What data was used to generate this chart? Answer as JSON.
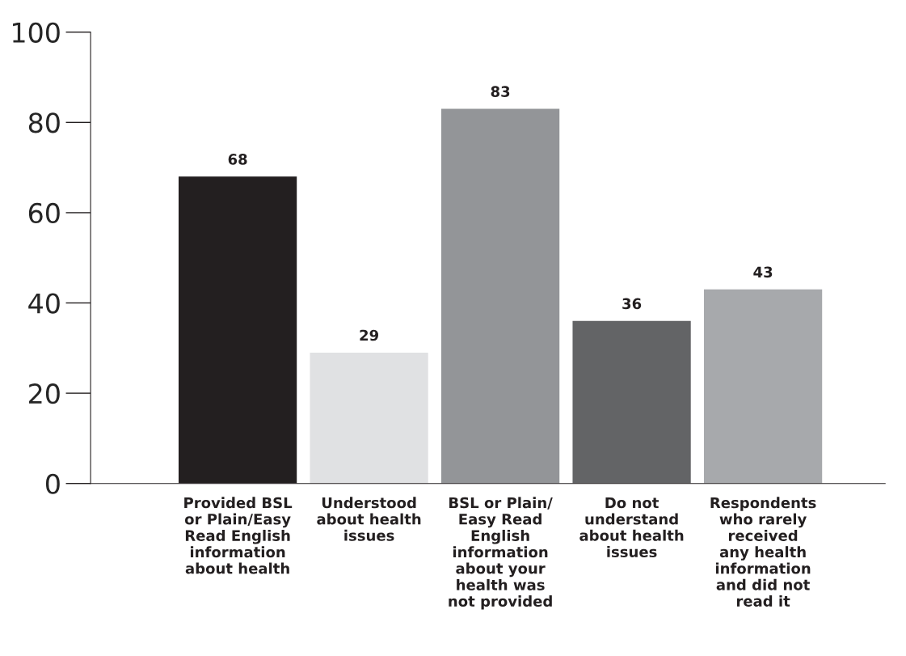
{
  "chart_data": {
    "type": "bar",
    "categories": [
      "Provided BSL\nor Plain/Easy\nRead English\ninformation\nabout health",
      "Understood\nabout health\nissues",
      "BSL or Plain/\nEasy Read\nEnglish\ninformation\nabout your\nhealth was\nnot provided",
      "Do not\nunderstand\nabout health\nissues",
      "Respondents\nwho rarely\nreceived\nany health\ninformation\nand did not\nread it"
    ],
    "values": [
      68,
      29,
      83,
      36,
      43
    ],
    "colors": [
      "#231f20",
      "#e0e1e3",
      "#939598",
      "#636466",
      "#a7a9ac"
    ],
    "ylim": [
      0,
      100
    ],
    "yticks": [
      0,
      20,
      40,
      60,
      80,
      100
    ],
    "data_labels": true,
    "grid": false,
    "legend": false
  }
}
